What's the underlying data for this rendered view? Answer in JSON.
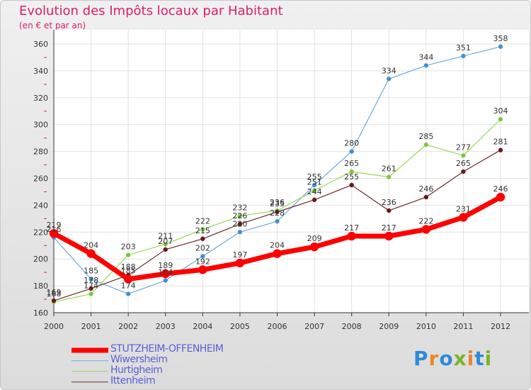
{
  "title": "Evolution des Impôts locaux par Habitant",
  "subtitle": "(en € et par an)",
  "logo": {
    "text": "Proxiti",
    "letter_colors": [
      "#2f8ad8",
      "#e8872a",
      "#2f8ad8",
      "#7ab52c",
      "#e8872a",
      "#2f8ad8",
      "#7ab52c"
    ]
  },
  "chart_data": {
    "type": "line",
    "x": [
      2000,
      2001,
      2002,
      2003,
      2004,
      2005,
      2006,
      2007,
      2008,
      2009,
      2010,
      2011,
      2012
    ],
    "ylim": [
      160,
      360
    ],
    "yticks": [
      160,
      180,
      200,
      220,
      240,
      260,
      280,
      300,
      320,
      340,
      360
    ],
    "grid": true,
    "legend_position": "bottom-left",
    "series": [
      {
        "name": "Wiwersheim",
        "color": "#6fa8d8",
        "marker": "#3f8fd2",
        "width": 1.2,
        "radius": 3,
        "values": [
          216,
          185,
          174,
          184,
          202,
          220,
          228,
          255,
          280,
          334,
          344,
          351,
          358
        ],
        "labels": [
          "216",
          "185",
          "174",
          "184",
          "202",
          "220",
          "228",
          "255",
          "280",
          "334",
          "344",
          "351",
          "358"
        ]
      },
      {
        "name": "Hurtigheim",
        "color": "#9ad65a",
        "marker": "#7cc640",
        "width": 1.2,
        "radius": 3,
        "values": [
          168,
          174,
          203,
          211,
          222,
          232,
          236,
          251,
          265,
          261,
          285,
          277,
          304
        ],
        "labels": [
          "168",
          "174",
          "203",
          "211",
          "222",
          "232",
          "236",
          "251",
          "265",
          "261",
          "285",
          "277",
          "304"
        ]
      },
      {
        "name": "Ittenheim",
        "color": "#6b2a2a",
        "marker": "#6b1818",
        "width": 1.2,
        "radius": 3,
        "values": [
          169,
          178,
          188,
          207,
          215,
          226,
          235,
          244,
          255,
          236,
          246,
          265,
          281
        ],
        "labels": [
          "169",
          "178",
          "188",
          "207",
          "215",
          "226",
          "235",
          "244",
          "255",
          "236",
          "246",
          "265",
          "281"
        ]
      },
      {
        "name": "STUTZHEIM-OFFENHEIM",
        "color": "#ff0000",
        "marker": "#ff0000",
        "width": 7,
        "radius": 6,
        "values": [
          219,
          204,
          185,
          189,
          192,
          197,
          204,
          209,
          217,
          217,
          222,
          231,
          246
        ],
        "labels": [
          "219",
          "204",
          "185",
          "189",
          "192",
          "197",
          "204",
          "209",
          "217",
          "217",
          "222",
          "231",
          "246"
        ]
      }
    ],
    "legend": [
      {
        "name": "STUTZHEIM-OFFENHEIM",
        "color": "#ff0000",
        "width": 7
      },
      {
        "name": "Wiwersheim",
        "color": "#6fa8d8",
        "width": 1.5
      },
      {
        "name": "Hurtigheim",
        "color": "#9ad65a",
        "width": 1.5
      },
      {
        "name": "Ittenheim",
        "color": "#6b2a2a",
        "width": 1.5
      }
    ]
  }
}
